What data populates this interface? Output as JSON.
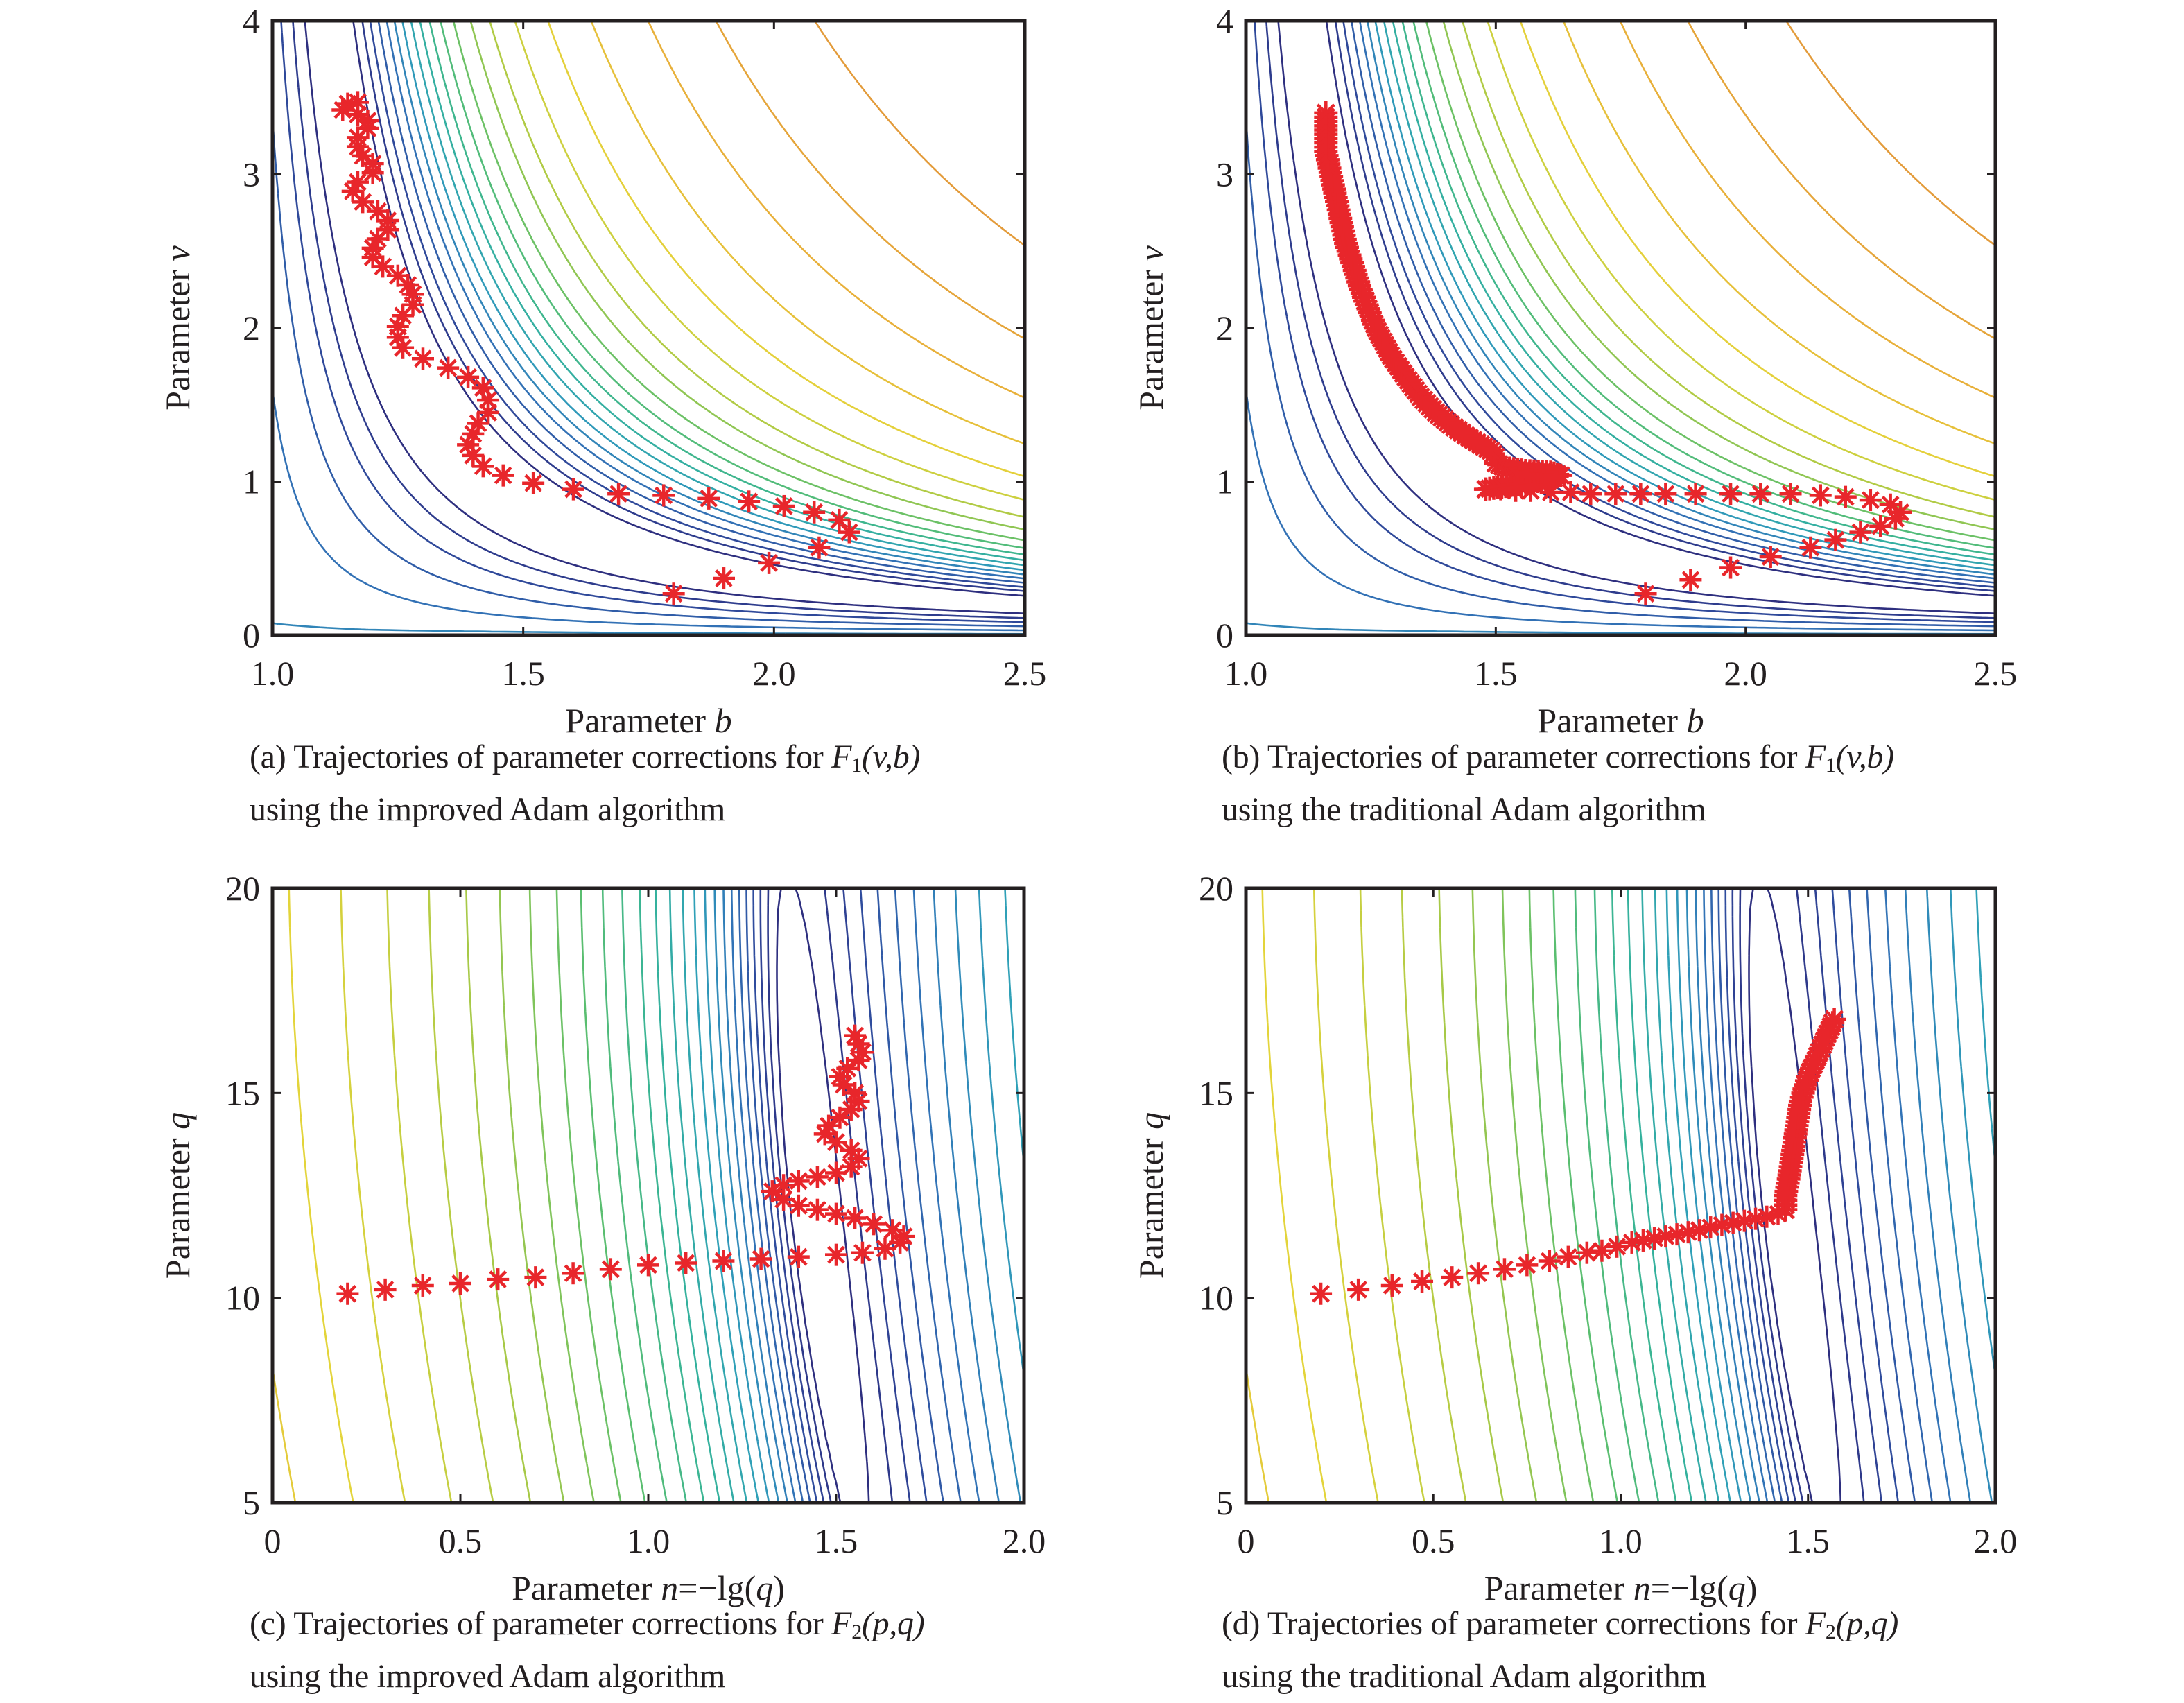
{
  "figure": {
    "panels": [
      {
        "id": "a",
        "caption_line1_prefix": "(a) Trajectories of parameter corrections for ",
        "caption_func": "F",
        "caption_sub": "1",
        "caption_args": "(v,b)",
        "caption_line2": "using the improved Adam algorithm"
      },
      {
        "id": "b",
        "caption_line1_prefix": "(b) Trajectories of parameter corrections for ",
        "caption_func": "F",
        "caption_sub": "1",
        "caption_args": "(v,b)",
        "caption_line2": "using the traditional Adam algorithm"
      },
      {
        "id": "c",
        "caption_line1_prefix": "(c) Trajectories of parameter corrections for ",
        "caption_func": "F",
        "caption_sub": "2",
        "caption_args": "(p,q)",
        "caption_line2": "using the improved Adam algorithm"
      },
      {
        "id": "d",
        "caption_line1_prefix": "(d) Trajectories of parameter corrections for ",
        "caption_func": "F",
        "caption_sub": "2",
        "caption_args": "(p,q)",
        "caption_line2": "using the traditional Adam algorithm"
      }
    ]
  },
  "colors": {
    "marker": "#e8262b",
    "axis": "#231f20",
    "contour_scale": [
      "#2e2f7f",
      "#2f4a9c",
      "#3276b8",
      "#2f9fb9",
      "#35b39a",
      "#5cbf6e",
      "#a8c947",
      "#e3d43a",
      "#e8b13a",
      "#e39b3a"
    ]
  },
  "chart_data": [
    {
      "id": "a",
      "type": "scatter",
      "title": "",
      "xlabel": "Parameter ",
      "xlabel_var": "b",
      "ylabel": "Parameter ",
      "ylabel_var": "v",
      "xlim": [
        1.0,
        2.5
      ],
      "ylim": [
        0,
        4
      ],
      "xticks": [
        "1.0",
        "1.5",
        "2.0",
        "2.5"
      ],
      "xtick_values": [
        1.0,
        1.5,
        2.0,
        2.5
      ],
      "yticks": [
        "0",
        "1",
        "2",
        "3",
        "4"
      ],
      "ytick_values": [
        0,
        1,
        2,
        3,
        4
      ],
      "background": "contour of F1(v,b), valley curving from (1.15,4) down to (2.3,0.55)",
      "marker": "asterisk",
      "series": [
        {
          "name": "improved Adam trajectory",
          "points": [
            [
              1.8,
              0.27
            ],
            [
              1.9,
              0.37
            ],
            [
              1.99,
              0.47
            ],
            [
              2.09,
              0.57
            ],
            [
              2.15,
              0.67
            ],
            [
              2.13,
              0.75
            ],
            [
              2.08,
              0.8
            ],
            [
              2.02,
              0.84
            ],
            [
              1.95,
              0.87
            ],
            [
              1.87,
              0.89
            ],
            [
              1.78,
              0.91
            ],
            [
              1.69,
              0.92
            ],
            [
              1.6,
              0.95
            ],
            [
              1.52,
              0.99
            ],
            [
              1.46,
              1.04
            ],
            [
              1.42,
              1.1
            ],
            [
              1.4,
              1.17
            ],
            [
              1.39,
              1.24
            ],
            [
              1.4,
              1.31
            ],
            [
              1.41,
              1.38
            ],
            [
              1.43,
              1.45
            ],
            [
              1.43,
              1.53
            ],
            [
              1.42,
              1.61
            ],
            [
              1.39,
              1.68
            ],
            [
              1.35,
              1.74
            ],
            [
              1.3,
              1.8
            ],
            [
              1.26,
              1.87
            ],
            [
              1.25,
              1.94
            ],
            [
              1.25,
              2.01
            ],
            [
              1.26,
              2.08
            ],
            [
              1.28,
              2.15
            ],
            [
              1.28,
              2.22
            ],
            [
              1.27,
              2.28
            ],
            [
              1.25,
              2.34
            ],
            [
              1.22,
              2.4
            ],
            [
              1.2,
              2.46
            ],
            [
              1.2,
              2.52
            ],
            [
              1.21,
              2.58
            ],
            [
              1.23,
              2.64
            ],
            [
              1.23,
              2.7
            ],
            [
              1.21,
              2.76
            ],
            [
              1.18,
              2.82
            ],
            [
              1.16,
              2.89
            ],
            [
              1.17,
              2.95
            ],
            [
              1.2,
              3.01
            ],
            [
              1.2,
              3.07
            ],
            [
              1.18,
              3.12
            ],
            [
              1.17,
              3.18
            ],
            [
              1.17,
              3.24
            ],
            [
              1.19,
              3.3
            ],
            [
              1.19,
              3.35
            ],
            [
              1.17,
              3.39
            ],
            [
              1.14,
              3.42
            ],
            [
              1.15,
              3.46
            ],
            [
              1.17,
              3.47
            ]
          ]
        }
      ]
    },
    {
      "id": "b",
      "type": "scatter",
      "title": "",
      "xlabel": "Parameter ",
      "xlabel_var": "b",
      "ylabel": "Parameter ",
      "ylabel_var": "v",
      "xlim": [
        1.0,
        2.5
      ],
      "ylim": [
        0,
        4
      ],
      "xticks": [
        "1.0",
        "1.5",
        "2.0",
        "2.5"
      ],
      "xtick_values": [
        1.0,
        1.5,
        2.0,
        2.5
      ],
      "yticks": [
        "0",
        "1",
        "2",
        "3",
        "4"
      ],
      "ytick_values": [
        0,
        1,
        2,
        3,
        4
      ],
      "background": "contour of F1(v,b), valley curving from (1.15,4) down to (2.3,0.55)",
      "marker": "asterisk",
      "series": [
        {
          "name": "traditional Adam trajectory (sparse markers)",
          "points": [
            [
              1.8,
              0.27
            ],
            [
              1.89,
              0.36
            ],
            [
              1.97,
              0.44
            ],
            [
              2.05,
              0.51
            ],
            [
              2.13,
              0.57
            ],
            [
              2.18,
              0.62
            ],
            [
              2.23,
              0.67
            ],
            [
              2.27,
              0.71
            ],
            [
              2.3,
              0.76
            ],
            [
              2.31,
              0.8
            ],
            [
              2.29,
              0.85
            ],
            [
              2.25,
              0.88
            ],
            [
              2.2,
              0.9
            ],
            [
              2.15,
              0.91
            ],
            [
              2.09,
              0.92
            ],
            [
              2.03,
              0.92
            ],
            [
              1.97,
              0.92
            ],
            [
              1.9,
              0.92
            ],
            [
              1.84,
              0.92
            ],
            [
              1.79,
              0.92
            ],
            [
              1.74,
              0.92
            ],
            [
              1.69,
              0.92
            ],
            [
              1.65,
              0.93
            ],
            [
              1.61,
              0.93
            ],
            [
              1.57,
              0.94
            ],
            [
              1.54,
              0.94
            ],
            [
              1.51,
              0.95
            ],
            [
              1.48,
              0.95
            ]
          ]
        },
        {
          "name": "traditional Adam trajectory (dense markers)",
          "points": [
            [
              1.48,
              0.95
            ],
            [
              1.52,
              0.97
            ],
            [
              1.56,
              0.99
            ],
            [
              1.6,
              1.01
            ],
            [
              1.63,
              1.04
            ],
            [
              1.61,
              1.06
            ],
            [
              1.56,
              1.07
            ],
            [
              1.52,
              1.09
            ],
            [
              1.5,
              1.12
            ],
            [
              1.5,
              1.16
            ],
            [
              1.49,
              1.2
            ],
            [
              1.47,
              1.24
            ],
            [
              1.44,
              1.3
            ],
            [
              1.41,
              1.37
            ],
            [
              1.38,
              1.45
            ],
            [
              1.35,
              1.55
            ],
            [
              1.32,
              1.68
            ],
            [
              1.29,
              1.82
            ],
            [
              1.26,
              2.0
            ],
            [
              1.23,
              2.25
            ],
            [
              1.2,
              2.55
            ],
            [
              1.18,
              2.85
            ],
            [
              1.16,
              3.15
            ],
            [
              1.16,
              3.4
            ]
          ]
        }
      ]
    },
    {
      "id": "c",
      "type": "scatter",
      "title": "",
      "xlabel": "Parameter ",
      "xlabel_var": "n",
      "xlabel_suffix": "=−lg(",
      "xlabel_var2": "q",
      "xlabel_end": ")",
      "ylabel": "Parameter ",
      "ylabel_var": "q",
      "xlim": [
        0,
        2.0
      ],
      "ylim": [
        5,
        20
      ],
      "xticks": [
        "0",
        "0.5",
        "1.0",
        "1.5",
        "2.0"
      ],
      "xtick_values": [
        0,
        0.5,
        1.0,
        1.5,
        2.0
      ],
      "yticks": [
        "5",
        "10",
        "15",
        "20"
      ],
      "ytick_values": [
        5,
        10,
        15,
        20
      ],
      "background": "contour of F2(p,q), near-vertical level lines; minimum basin near n=1.4",
      "marker": "asterisk",
      "series": [
        {
          "name": "improved Adam trajectory",
          "points": [
            [
              0.2,
              10.1
            ],
            [
              0.3,
              10.2
            ],
            [
              0.4,
              10.3
            ],
            [
              0.5,
              10.35
            ],
            [
              0.6,
              10.45
            ],
            [
              0.7,
              10.5
            ],
            [
              0.8,
              10.6
            ],
            [
              0.9,
              10.7
            ],
            [
              1.0,
              10.8
            ],
            [
              1.1,
              10.85
            ],
            [
              1.2,
              10.9
            ],
            [
              1.3,
              10.95
            ],
            [
              1.4,
              11.0
            ],
            [
              1.5,
              11.05
            ],
            [
              1.57,
              11.1
            ],
            [
              1.63,
              11.2
            ],
            [
              1.67,
              11.35
            ],
            [
              1.68,
              11.5
            ],
            [
              1.65,
              11.65
            ],
            [
              1.6,
              11.8
            ],
            [
              1.55,
              11.95
            ],
            [
              1.5,
              12.05
            ],
            [
              1.45,
              12.15
            ],
            [
              1.4,
              12.25
            ],
            [
              1.36,
              12.4
            ],
            [
              1.33,
              12.6
            ],
            [
              1.36,
              12.75
            ],
            [
              1.4,
              12.85
            ],
            [
              1.45,
              12.95
            ],
            [
              1.5,
              13.05
            ],
            [
              1.54,
              13.2
            ],
            [
              1.56,
              13.4
            ],
            [
              1.54,
              13.6
            ],
            [
              1.5,
              13.8
            ],
            [
              1.47,
              14.0
            ],
            [
              1.48,
              14.2
            ],
            [
              1.51,
              14.4
            ],
            [
              1.54,
              14.6
            ],
            [
              1.56,
              14.8
            ],
            [
              1.55,
              15.0
            ],
            [
              1.52,
              15.2
            ],
            [
              1.51,
              15.4
            ],
            [
              1.53,
              15.6
            ],
            [
              1.56,
              15.8
            ],
            [
              1.57,
              16.0
            ],
            [
              1.56,
              16.2
            ],
            [
              1.55,
              16.4
            ]
          ]
        }
      ]
    },
    {
      "id": "d",
      "type": "scatter",
      "title": "",
      "xlabel": "Parameter ",
      "xlabel_var": "n",
      "xlabel_suffix": "=−lg(",
      "xlabel_var2": "q",
      "xlabel_end": ")",
      "ylabel": "Parameter ",
      "ylabel_var": "q",
      "xlim": [
        0,
        2.0
      ],
      "ylim": [
        5,
        20
      ],
      "xticks": [
        "0",
        "0.5",
        "1.0",
        "1.5",
        "2.0"
      ],
      "xtick_values": [
        0,
        0.5,
        1.0,
        1.5,
        2.0
      ],
      "yticks": [
        "5",
        "10",
        "15",
        "20"
      ],
      "ytick_values": [
        5,
        10,
        15,
        20
      ],
      "background": "contour of F2(p,q), near-vertical level lines; minimum basin near n=1.4",
      "marker": "asterisk",
      "series": [
        {
          "name": "traditional Adam trajectory (sparse markers)",
          "points": [
            [
              0.2,
              10.1
            ],
            [
              0.3,
              10.2
            ],
            [
              0.39,
              10.3
            ],
            [
              0.47,
              10.4
            ],
            [
              0.55,
              10.5
            ],
            [
              0.62,
              10.6
            ],
            [
              0.69,
              10.7
            ],
            [
              0.75,
              10.8
            ],
            [
              0.81,
              10.9
            ],
            [
              0.86,
              11.0
            ],
            [
              0.91,
              11.1
            ],
            [
              0.95,
              11.15
            ],
            [
              0.99,
              11.25
            ],
            [
              1.03,
              11.35
            ],
            [
              1.06,
              11.4
            ],
            [
              1.09,
              11.45
            ],
            [
              1.12,
              11.5
            ],
            [
              1.15,
              11.55
            ],
            [
              1.18,
              11.6
            ],
            [
              1.21,
              11.65
            ],
            [
              1.24,
              11.72
            ],
            [
              1.27,
              11.78
            ],
            [
              1.3,
              11.83
            ],
            [
              1.33,
              11.88
            ],
            [
              1.36,
              11.93
            ],
            [
              1.39,
              11.98
            ],
            [
              1.42,
              12.05
            ],
            [
              1.44,
              12.15
            ]
          ]
        },
        {
          "name": "traditional Adam trajectory (dense markers)",
          "points": [
            [
              1.44,
              12.15
            ],
            [
              1.44,
              12.5
            ],
            [
              1.45,
              13.0
            ],
            [
              1.46,
              13.6
            ],
            [
              1.47,
              14.2
            ],
            [
              1.48,
              14.8
            ],
            [
              1.5,
              15.4
            ],
            [
              1.53,
              16.0
            ],
            [
              1.57,
              16.8
            ]
          ]
        }
      ]
    }
  ]
}
